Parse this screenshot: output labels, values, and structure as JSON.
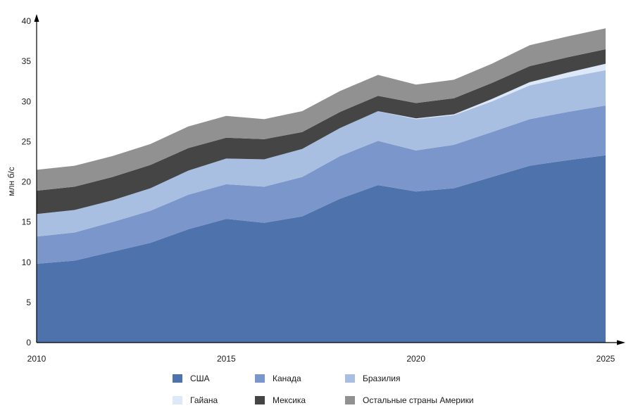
{
  "chart_data": {
    "type": "area",
    "stacked": true,
    "ylabel": "млн б/с",
    "xlabel": "",
    "ylim": [
      0,
      40
    ],
    "xlim": [
      2010,
      2025
    ],
    "yticks": [
      0,
      5,
      10,
      15,
      20,
      25,
      30,
      35,
      40
    ],
    "xticks": [
      2010,
      2015,
      2020,
      2025
    ],
    "grid": false,
    "legend_position": "bottom",
    "x": [
      2010,
      2011,
      2012,
      2013,
      2014,
      2015,
      2016,
      2017,
      2018,
      2019,
      2020,
      2021,
      2022,
      2023,
      2024,
      2025
    ],
    "series": [
      {
        "name": "США",
        "color": "#4e72ab",
        "values": [
          9.8,
          10.2,
          11.3,
          12.4,
          14.1,
          15.4,
          14.9,
          15.7,
          17.9,
          19.6,
          18.8,
          19.2,
          20.6,
          22.0,
          22.7,
          23.3
        ]
      },
      {
        "name": "Канада",
        "color": "#7b96ca",
        "values": [
          3.4,
          3.5,
          3.7,
          4.0,
          4.3,
          4.3,
          4.5,
          4.9,
          5.3,
          5.5,
          5.1,
          5.4,
          5.6,
          5.8,
          6.0,
          6.2
        ]
      },
      {
        "name": "Бразилия",
        "color": "#a9bfe2",
        "values": [
          2.8,
          2.8,
          2.7,
          2.8,
          3.0,
          3.2,
          3.4,
          3.5,
          3.5,
          3.7,
          3.9,
          3.7,
          3.8,
          4.2,
          4.3,
          4.4
        ]
      },
      {
        "name": "Гайана",
        "color": "#dde9f8",
        "values": [
          0,
          0,
          0,
          0,
          0,
          0,
          0,
          0,
          0,
          0,
          0.1,
          0.1,
          0.3,
          0.4,
          0.6,
          0.8
        ]
      },
      {
        "name": "Мексика",
        "color": "#454545",
        "values": [
          2.9,
          2.9,
          2.9,
          2.9,
          2.8,
          2.6,
          2.5,
          2.1,
          2.0,
          1.9,
          1.9,
          2.0,
          2.0,
          2.0,
          1.9,
          1.8
        ]
      },
      {
        "name": "Остальные страны Америки",
        "color": "#919191",
        "values": [
          2.6,
          2.6,
          2.6,
          2.6,
          2.7,
          2.7,
          2.5,
          2.6,
          2.6,
          2.6,
          2.3,
          2.3,
          2.4,
          2.6,
          2.6,
          2.6
        ]
      }
    ]
  }
}
